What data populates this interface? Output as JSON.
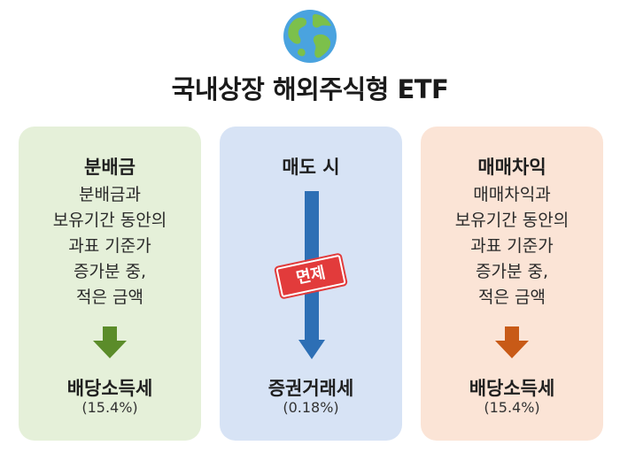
{
  "title": "국내상장 해외주식형 ETF",
  "icon": "globe-icon",
  "colors": {
    "green_card": "#e5f0d9",
    "blue_card": "#d7e3f5",
    "orange_card": "#fbe4d6",
    "green_arrow": "#5b8c2a",
    "blue_arrow": "#2d6fb5",
    "orange_arrow": "#c85a17",
    "stamp": "#e23b3b"
  },
  "cards": [
    {
      "heading": "분배금",
      "lines": [
        "분배금과",
        "보유기간 동안의",
        "과표 기준가",
        "증가분 중,",
        "적은 금액"
      ],
      "result": "배당소득세",
      "rate": "(15.4%)"
    },
    {
      "heading": "매도 시",
      "stamp": "면제",
      "result": "증권거래세",
      "rate": "(0.18%)"
    },
    {
      "heading": "매매차익",
      "lines": [
        "매매차익과",
        "보유기간 동안의",
        "과표 기준가",
        "증가분 중,",
        "적은 금액"
      ],
      "result": "배당소득세",
      "rate": "(15.4%)"
    }
  ]
}
